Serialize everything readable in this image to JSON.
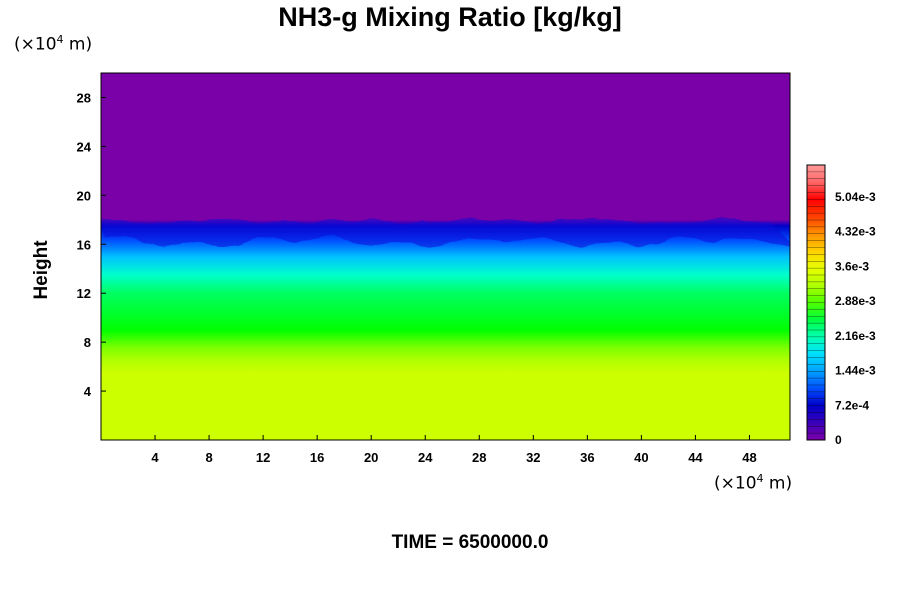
{
  "chart_data": {
    "type": "heatmap",
    "title": "NH3-g Mixing Ratio [kg/kg]",
    "ylabel": "Height",
    "x_unit": "m",
    "y_unit": "m",
    "unit_scale_label": "(×10",
    "unit_scale_exp": "4",
    "unit_scale_suffix": " m)",
    "footer": "TIME = 6500000.0",
    "xlim": [
      0,
      51
    ],
    "ylim": [
      0,
      30
    ],
    "x_ticks": [
      "4",
      "8",
      "12",
      "16",
      "20",
      "24",
      "28",
      "32",
      "36",
      "40",
      "44",
      "48"
    ],
    "x_tick_values": [
      4,
      8,
      12,
      16,
      20,
      24,
      28,
      32,
      36,
      40,
      44,
      48
    ],
    "y_ticks": [
      "4",
      "8",
      "12",
      "16",
      "20",
      "24",
      "28"
    ],
    "y_tick_values": [
      4,
      8,
      12,
      16,
      20,
      24,
      28
    ],
    "colorbar": {
      "labels": [
        "0",
        "7.2e-4",
        "1.44e-3",
        "2.16e-3",
        "2.88e-3",
        "3.6e-3",
        "4.32e-3",
        "5.04e-3"
      ],
      "label_values": [
        0,
        0.00072,
        0.00144,
        0.00216,
        0.00288,
        0.0036,
        0.00432,
        0.00504
      ],
      "range": [
        0,
        0.0057
      ],
      "levels": 40
    },
    "profile": [
      {
        "height": 0,
        "value": 0.00331,
        "color": "#ccff00"
      },
      {
        "height": 5.5,
        "value": 0.00331,
        "color": "#ccff00"
      },
      {
        "height": 6.5,
        "value": 0.0031,
        "color": "#b0ff00"
      },
      {
        "height": 7.5,
        "value": 0.00295,
        "color": "#7fff00"
      },
      {
        "height": 9,
        "value": 0.00275,
        "color": "#00ff00"
      },
      {
        "height": 12,
        "value": 0.0024,
        "color": "#00ff60"
      },
      {
        "height": 13.5,
        "value": 0.0021,
        "color": "#00ffcc"
      },
      {
        "height": 15,
        "value": 0.0016,
        "color": "#00c0ff"
      },
      {
        "height": 16.3,
        "value": 0.0009,
        "color": "#0050ff"
      },
      {
        "height": 17.5,
        "value": 0.0003,
        "color": "#0000c8"
      },
      {
        "height": 18,
        "value": 1e-05,
        "color": "#7a00a8"
      },
      {
        "height": 30,
        "value": 1e-05,
        "color": "#7a00a8"
      }
    ],
    "grid": false,
    "legend": "colorbar-right"
  }
}
